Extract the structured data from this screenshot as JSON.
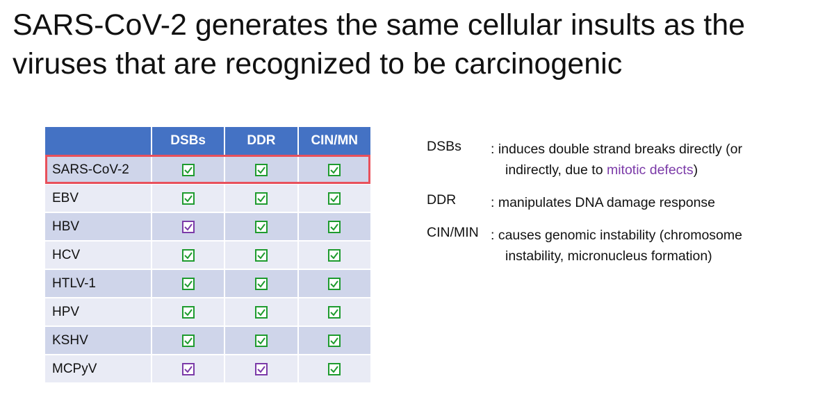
{
  "title_lines": [
    "SARS-CoV-2 generates the same cellular insults as the",
    "viruses that are recognized to be carcinogenic"
  ],
  "table": {
    "columns": [
      "DSBs",
      "DDR",
      "CIN/MN"
    ],
    "highlight_row": 0,
    "rows": [
      {
        "name": "SARS-CoV-2",
        "checks": [
          "#1e9b2e",
          "#1e9b2e",
          "#1e9b2e"
        ]
      },
      {
        "name": "EBV",
        "checks": [
          "#1e9b2e",
          "#1e9b2e",
          "#1e9b2e"
        ]
      },
      {
        "name": "HBV",
        "checks": [
          "#7b3aa8",
          "#1e9b2e",
          "#1e9b2e"
        ]
      },
      {
        "name": "HCV",
        "checks": [
          "#1e9b2e",
          "#1e9b2e",
          "#1e9b2e"
        ]
      },
      {
        "name": "HTLV-1",
        "checks": [
          "#1e9b2e",
          "#1e9b2e",
          "#1e9b2e"
        ]
      },
      {
        "name": "HPV",
        "checks": [
          "#1e9b2e",
          "#1e9b2e",
          "#1e9b2e"
        ]
      },
      {
        "name": "KSHV",
        "checks": [
          "#1e9b2e",
          "#1e9b2e",
          "#1e9b2e"
        ]
      },
      {
        "name": "MCPyV",
        "checks": [
          "#7b3aa8",
          "#7b3aa8",
          "#1e9b2e"
        ]
      }
    ]
  },
  "definitions": [
    {
      "term": "DSBs",
      "lines": [
        [
          {
            "text": ": induces double strand breaks directly (or"
          }
        ],
        [
          {
            "text": "indirectly, due to "
          },
          {
            "text": "mitotic defects",
            "color": "#7b3aa8"
          },
          {
            "text": ")"
          }
        ]
      ]
    },
    {
      "term": "DDR",
      "lines": [
        [
          {
            "text": ": manipulates DNA damage response"
          }
        ]
      ]
    },
    {
      "term": "CIN/MIN",
      "lines": [
        [
          {
            "text": ": causes genomic instability (chromosome"
          }
        ],
        [
          {
            "text": "instability, micronucleus formation)"
          }
        ]
      ]
    }
  ]
}
